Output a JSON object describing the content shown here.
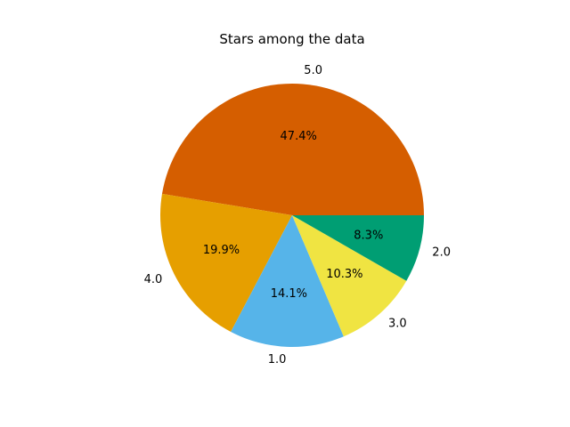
{
  "chart_data": {
    "type": "pie",
    "title": "Stars among the data",
    "categories": [
      "5.0",
      "4.0",
      "1.0",
      "3.0",
      "2.0"
    ],
    "values": [
      47.4,
      19.9,
      14.1,
      10.3,
      8.3
    ],
    "percent_labels": [
      "47.4%",
      "19.9%",
      "14.1%",
      "10.3%",
      "8.3%"
    ],
    "colors": [
      "#d55e00",
      "#e69f00",
      "#56b4e9",
      "#f0e442",
      "#009e73"
    ],
    "start_angle_deg": 0,
    "direction": "counterclockwise",
    "legend": "none"
  }
}
